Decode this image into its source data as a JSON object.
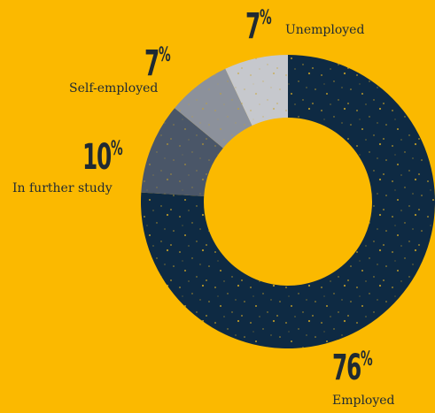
{
  "chart_data": {
    "type": "pie",
    "donut": true,
    "title": "",
    "slices": [
      {
        "label": "Employed",
        "value": 76,
        "display": "76",
        "color": "#0E2A43"
      },
      {
        "label": "In further study",
        "value": 10,
        "display": "10",
        "color": "#4A5668"
      },
      {
        "label": "Self-employed",
        "value": 7,
        "display": "7",
        "color": "#8C919B"
      },
      {
        "label": "Unemployed",
        "value": 7,
        "display": "7",
        "color": "#C6C8CD"
      }
    ],
    "speckle_color": "#C9A227",
    "percent_symbol": "%"
  }
}
